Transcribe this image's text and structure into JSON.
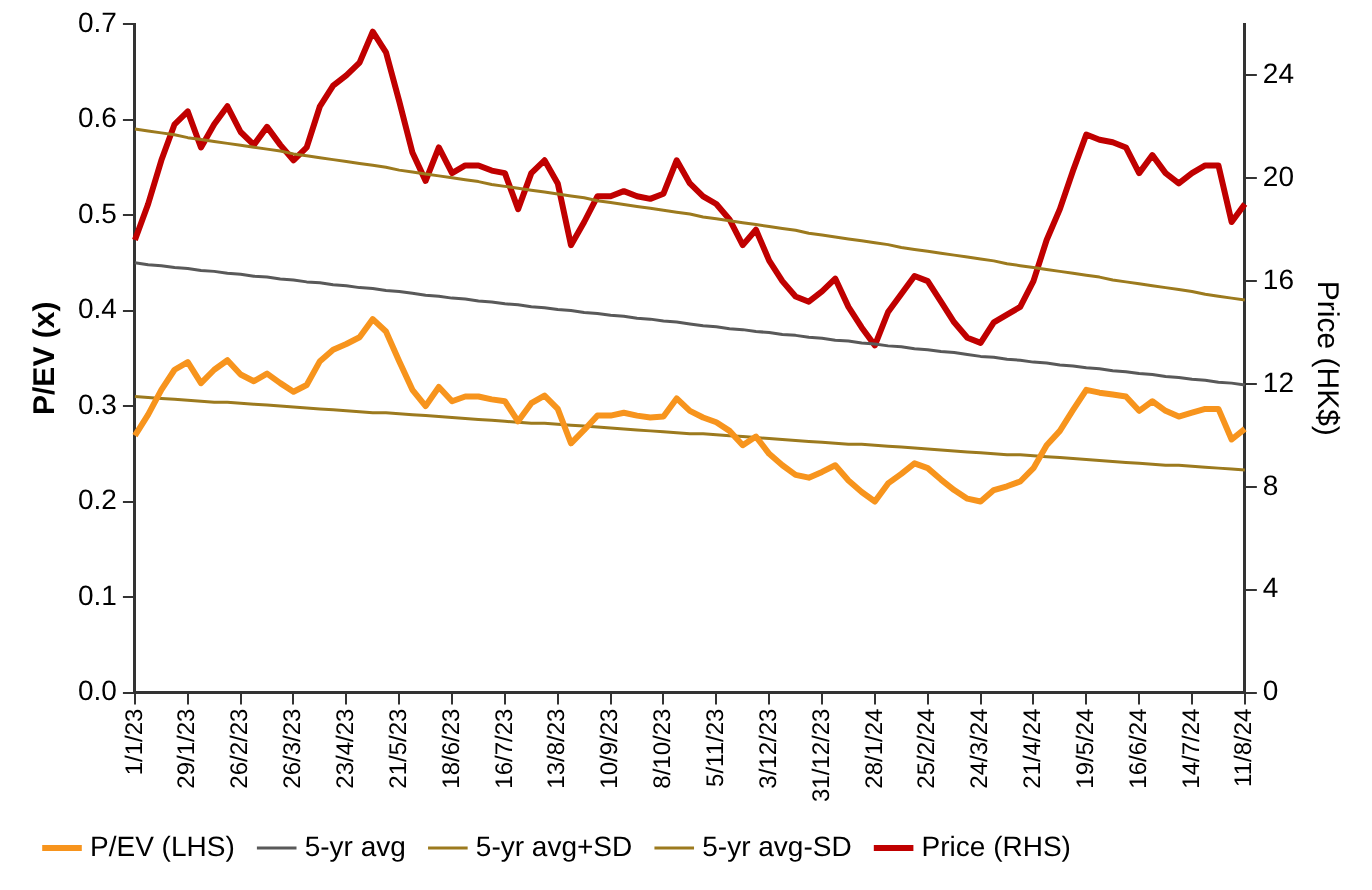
{
  "chart_data": {
    "type": "line",
    "ylabel": "P/EV (x)",
    "y2label": "Price (HK$)",
    "categories": [
      "1/1/23",
      null,
      null,
      null,
      "29/1/23",
      null,
      null,
      null,
      "26/2/23",
      null,
      null,
      null,
      "26/3/23",
      null,
      null,
      null,
      "23/4/23",
      null,
      null,
      null,
      "21/5/23",
      null,
      null,
      null,
      "18/6/23",
      null,
      null,
      null,
      "16/7/23",
      null,
      null,
      null,
      "13/8/23",
      null,
      null,
      null,
      "10/9/23",
      null,
      null,
      null,
      "8/10/23",
      null,
      null,
      null,
      "5/11/23",
      null,
      null,
      null,
      "3/12/23",
      null,
      null,
      null,
      "31/12/23",
      null,
      null,
      null,
      "28/1/24",
      null,
      null,
      null,
      "25/2/24",
      null,
      null,
      null,
      "24/3/24",
      null,
      null,
      null,
      "21/4/24",
      null,
      null,
      null,
      "19/5/24",
      null,
      null,
      null,
      "16/6/24",
      null,
      null,
      null,
      "14/7/24",
      null,
      null,
      null,
      "11/8/24"
    ],
    "series": [
      {
        "name": "P/EV (LHS)",
        "color": "#f7941d",
        "values": [
          0.269,
          0.291,
          0.317,
          0.338,
          0.346,
          0.324,
          0.338,
          0.348,
          0.333,
          0.326,
          0.334,
          0.324,
          0.315,
          0.322,
          0.347,
          0.359,
          0.365,
          0.372,
          0.391,
          0.378,
          0.347,
          0.317,
          0.3,
          0.32,
          0.305,
          0.31,
          0.31,
          0.307,
          0.305,
          0.284,
          0.303,
          0.311,
          0.297,
          0.261,
          0.275,
          0.29,
          0.29,
          0.293,
          0.29,
          0.288,
          0.289,
          0.308,
          0.295,
          0.288,
          0.283,
          0.274,
          0.259,
          0.268,
          0.25,
          0.238,
          0.228,
          0.225,
          0.231,
          0.238,
          0.222,
          0.21,
          0.2,
          0.219,
          0.229,
          0.24,
          0.235,
          0.223,
          0.212,
          0.203,
          0.2,
          0.212,
          0.216,
          0.221,
          0.235,
          0.259,
          0.274,
          0.296,
          0.317,
          0.314,
          0.312,
          0.31,
          0.295,
          0.305,
          0.295,
          0.289,
          0.293,
          0.297,
          0.297,
          0.265,
          0.276
        ]
      },
      {
        "name": "5-yr avg",
        "color": "#595959",
        "values": [
          0.45,
          0.448,
          0.447,
          0.445,
          0.444,
          0.442,
          0.441,
          0.439,
          0.438,
          0.436,
          0.435,
          0.433,
          0.432,
          0.43,
          0.429,
          0.427,
          0.426,
          0.424,
          0.423,
          0.421,
          0.42,
          0.418,
          0.416,
          0.415,
          0.413,
          0.412,
          0.41,
          0.409,
          0.407,
          0.406,
          0.404,
          0.403,
          0.401,
          0.4,
          0.398,
          0.397,
          0.395,
          0.394,
          0.392,
          0.391,
          0.389,
          0.388,
          0.386,
          0.384,
          0.383,
          0.381,
          0.38,
          0.378,
          0.377,
          0.375,
          0.374,
          0.372,
          0.371,
          0.369,
          0.368,
          0.366,
          0.365,
          0.363,
          0.362,
          0.36,
          0.359,
          0.357,
          0.356,
          0.354,
          0.352,
          0.351,
          0.349,
          0.348,
          0.346,
          0.345,
          0.343,
          0.342,
          0.34,
          0.339,
          0.337,
          0.336,
          0.334,
          0.333,
          0.331,
          0.33,
          0.328,
          0.327,
          0.325,
          0.324,
          0.322
        ]
      },
      {
        "name": "5-yr avg+SD",
        "color": "#9c7a1e",
        "values": [
          0.59,
          0.588,
          0.586,
          0.584,
          0.581,
          0.579,
          0.577,
          0.575,
          0.573,
          0.571,
          0.569,
          0.567,
          0.564,
          0.562,
          0.56,
          0.558,
          0.556,
          0.554,
          0.552,
          0.55,
          0.547,
          0.545,
          0.543,
          0.541,
          0.539,
          0.537,
          0.535,
          0.532,
          0.53,
          0.528,
          0.526,
          0.524,
          0.522,
          0.52,
          0.518,
          0.515,
          0.513,
          0.511,
          0.509,
          0.507,
          0.505,
          0.503,
          0.501,
          0.498,
          0.496,
          0.494,
          0.492,
          0.49,
          0.488,
          0.486,
          0.484,
          0.481,
          0.479,
          0.477,
          0.475,
          0.473,
          0.471,
          0.469,
          0.466,
          0.464,
          0.462,
          0.46,
          0.458,
          0.456,
          0.454,
          0.452,
          0.449,
          0.447,
          0.445,
          0.443,
          0.441,
          0.439,
          0.437,
          0.435,
          0.432,
          0.43,
          0.428,
          0.426,
          0.424,
          0.422,
          0.42,
          0.417,
          0.415,
          0.413,
          0.411
        ]
      },
      {
        "name": "5-yr avg-SD",
        "color": "#9c7a1e",
        "values": [
          0.31,
          0.309,
          0.308,
          0.307,
          0.306,
          0.305,
          0.304,
          0.304,
          0.303,
          0.302,
          0.301,
          0.3,
          0.299,
          0.298,
          0.297,
          0.296,
          0.295,
          0.294,
          0.293,
          0.293,
          0.292,
          0.291,
          0.29,
          0.289,
          0.288,
          0.287,
          0.286,
          0.285,
          0.284,
          0.283,
          0.282,
          0.282,
          0.281,
          0.28,
          0.279,
          0.278,
          0.277,
          0.276,
          0.275,
          0.274,
          0.273,
          0.272,
          0.271,
          0.271,
          0.27,
          0.269,
          0.268,
          0.267,
          0.266,
          0.265,
          0.264,
          0.263,
          0.262,
          0.261,
          0.26,
          0.26,
          0.259,
          0.258,
          0.257,
          0.256,
          0.255,
          0.254,
          0.253,
          0.252,
          0.251,
          0.25,
          0.249,
          0.249,
          0.248,
          0.247,
          0.246,
          0.245,
          0.244,
          0.243,
          0.242,
          0.241,
          0.24,
          0.239,
          0.238,
          0.238,
          0.237,
          0.236,
          0.235,
          0.234,
          0.233
        ]
      },
      {
        "name": "Price (RHS)",
        "color": "#c00000",
        "axis": "y2",
        "values": [
          17.6,
          19.0,
          20.7,
          22.1,
          22.6,
          21.2,
          22.1,
          22.8,
          21.8,
          21.3,
          22.0,
          21.3,
          20.7,
          21.2,
          22.8,
          23.6,
          24.0,
          24.5,
          25.7,
          24.9,
          23.0,
          21.0,
          19.9,
          21.2,
          20.2,
          20.5,
          20.5,
          20.3,
          20.2,
          18.8,
          20.2,
          20.7,
          19.8,
          17.4,
          18.3,
          19.3,
          19.3,
          19.5,
          19.3,
          19.2,
          19.4,
          20.7,
          19.8,
          19.3,
          19.0,
          18.4,
          17.4,
          18.0,
          16.8,
          16.0,
          15.4,
          15.2,
          15.6,
          16.1,
          15.0,
          14.2,
          13.5,
          14.8,
          15.5,
          16.2,
          16.0,
          15.2,
          14.4,
          13.8,
          13.6,
          14.4,
          14.7,
          15.0,
          16.0,
          17.6,
          18.8,
          20.3,
          21.7,
          21.5,
          21.4,
          21.2,
          20.2,
          20.9,
          20.2,
          19.8,
          20.2,
          20.5,
          20.5,
          18.3,
          19.0
        ]
      }
    ],
    "ylim": [
      0,
      0.7
    ],
    "yticks": [
      {
        "value": 0,
        "label": "0.0"
      },
      0.1,
      0.2,
      0.3,
      0.4,
      0.5,
      0.6,
      0.7
    ],
    "y2lim": [
      0,
      26
    ],
    "y2ticks": [
      0,
      4,
      8,
      12,
      16,
      20,
      24
    ],
    "legend": "bottom",
    "grid": false,
    "marker": "none",
    "line_style": "solid"
  }
}
